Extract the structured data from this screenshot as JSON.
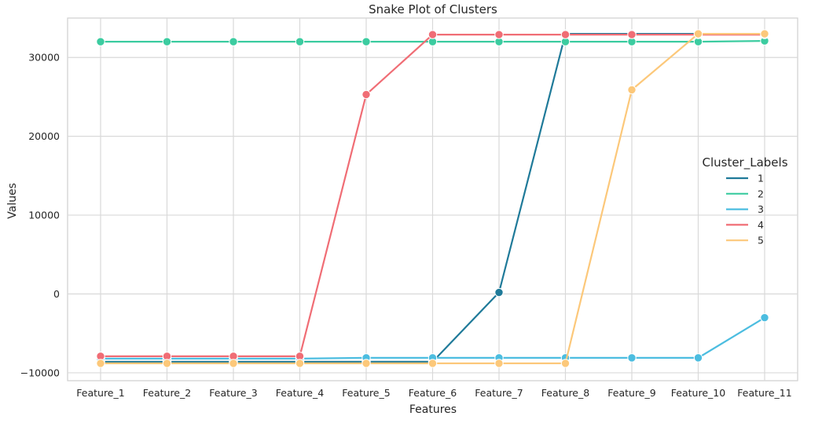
{
  "chart_data": {
    "type": "line",
    "title": "Snake Plot of Clusters",
    "xlabel": "Features",
    "ylabel": "Values",
    "categories": [
      "Feature_1",
      "Feature_2",
      "Feature_3",
      "Feature_4",
      "Feature_5",
      "Feature_6",
      "Feature_7",
      "Feature_8",
      "Feature_9",
      "Feature_10",
      "Feature_11"
    ],
    "ylim": [
      -11000,
      35000
    ],
    "yticks": [
      -10000,
      0,
      10000,
      20000,
      30000
    ],
    "ytick_labels": [
      "−10000",
      "0",
      "10000",
      "20000",
      "30000"
    ],
    "grid": true,
    "legend": {
      "title": "Cluster_Labels",
      "placement": "center-right"
    },
    "series": [
      {
        "name": "1",
        "color": "#1f7a99",
        "values": [
          -8600,
          -8600,
          -8600,
          -8600,
          -8600,
          -8600,
          200,
          33000,
          33000,
          33000,
          33000
        ]
      },
      {
        "name": "2",
        "color": "#3ccca0",
        "values": [
          32000,
          32000,
          32000,
          32000,
          32000,
          32000,
          32000,
          32000,
          32000,
          32000,
          32100
        ]
      },
      {
        "name": "3",
        "color": "#4cbde0",
        "values": [
          -8200,
          -8200,
          -8200,
          -8200,
          -8100,
          -8100,
          -8100,
          -8100,
          -8100,
          -8100,
          -3000
        ]
      },
      {
        "name": "4",
        "color": "#f06d75",
        "values": [
          -7900,
          -7900,
          -7900,
          -7900,
          25300,
          32900,
          32900,
          32900,
          32900,
          32900,
          32900
        ]
      },
      {
        "name": "5",
        "color": "#fcc87a",
        "values": [
          -8800,
          -8800,
          -8800,
          -8800,
          -8800,
          -8800,
          -8800,
          -8800,
          25900,
          33000,
          33000
        ]
      }
    ]
  }
}
